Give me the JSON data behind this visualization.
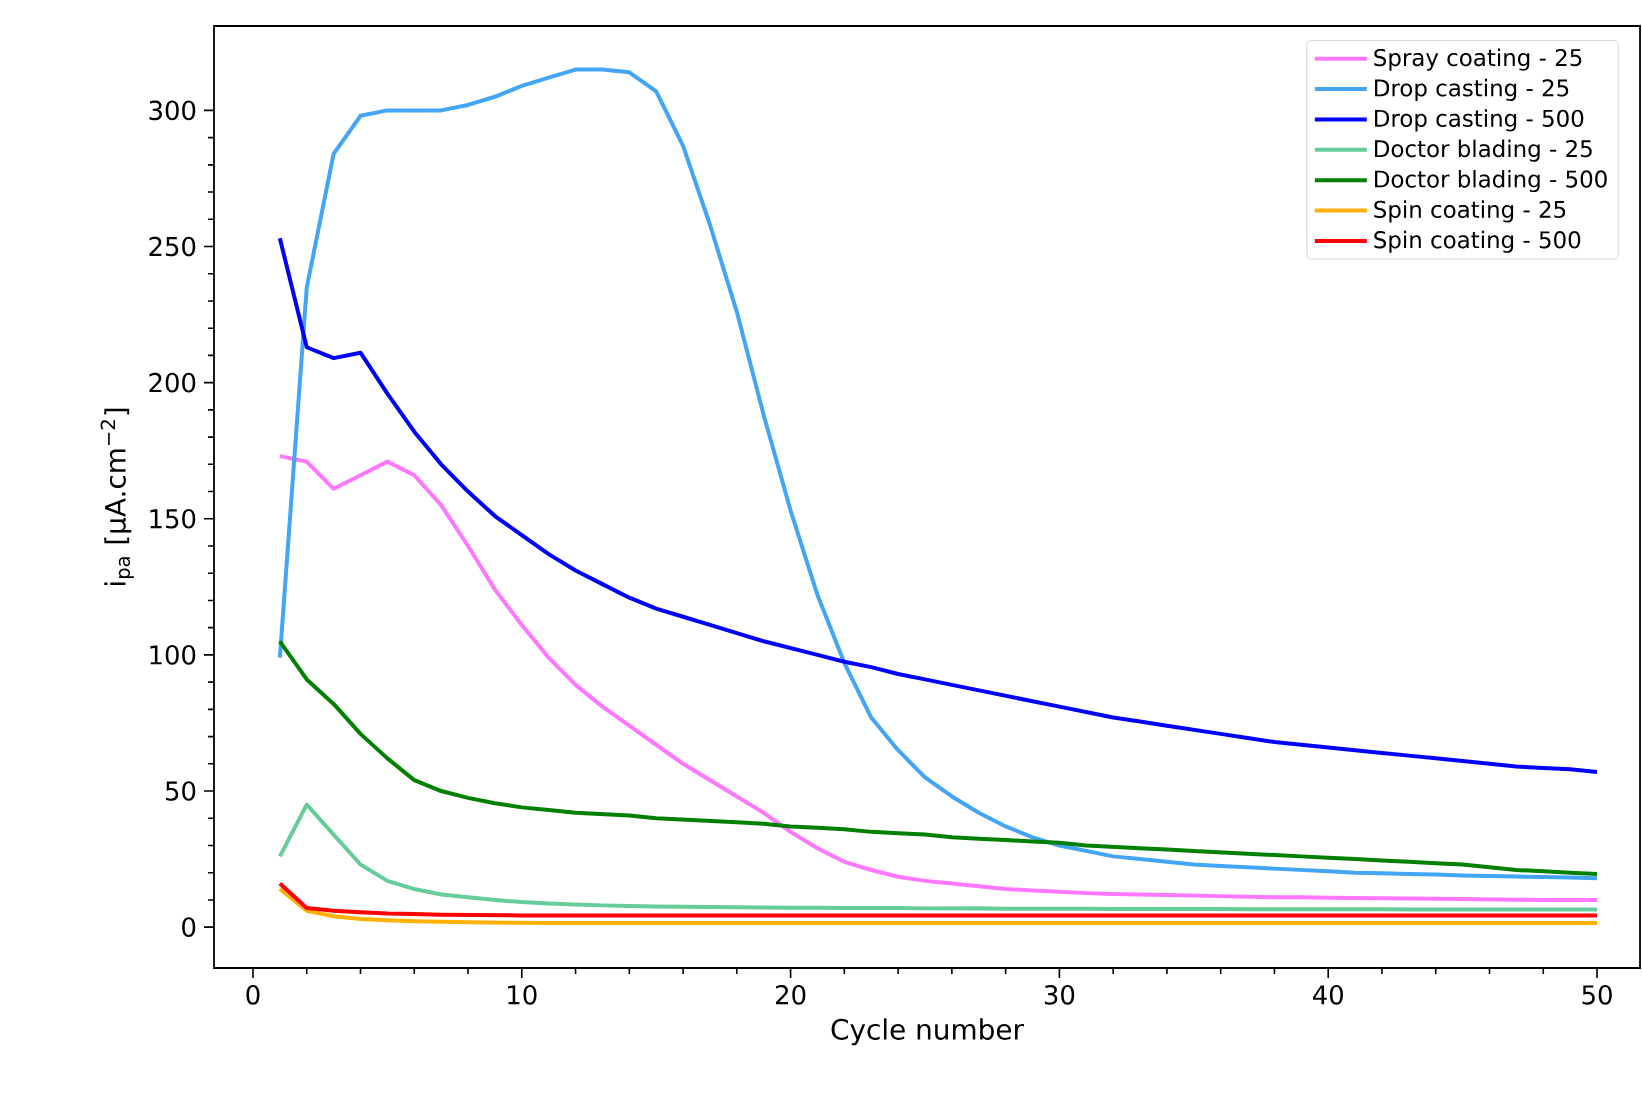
{
  "chart_data": {
    "type": "line",
    "xlabel": "Cycle number",
    "ylabel": "i$_{pa}$ [µA.cm$^{−2}$]",
    "x": [
      1,
      2,
      3,
      4,
      5,
      6,
      7,
      8,
      9,
      10,
      11,
      12,
      13,
      14,
      15,
      16,
      17,
      18,
      19,
      20,
      21,
      22,
      23,
      24,
      25,
      26,
      27,
      28,
      29,
      30,
      31,
      32,
      33,
      34,
      35,
      36,
      37,
      38,
      39,
      40,
      41,
      42,
      43,
      44,
      45,
      46,
      47,
      48,
      49,
      50
    ],
    "series": [
      {
        "name": "Spray coating - 25",
        "color": "#ff77ff",
        "values": [
          173,
          171,
          161,
          166,
          171,
          166,
          155,
          140,
          124,
          111,
          99,
          89,
          81,
          74,
          67,
          60,
          54,
          48,
          42,
          35,
          29,
          24,
          21,
          18.5,
          17,
          16,
          15,
          14,
          13.5,
          13,
          12.5,
          12.2,
          12,
          11.8,
          11.6,
          11.4,
          11.2,
          11,
          11,
          10.8,
          10.7,
          10.6,
          10.5,
          10.4,
          10.3,
          10.2,
          10.1,
          10,
          10,
          10
        ]
      },
      {
        "name": "Drop casting - 25",
        "color": "#42a5f5",
        "values": [
          99,
          235,
          284,
          298,
          300,
          300,
          300,
          302,
          305,
          309,
          312,
          315,
          315,
          314,
          307,
          287,
          258,
          226,
          188,
          153,
          122,
          97,
          77,
          65,
          55,
          48,
          42,
          37,
          33,
          30,
          28,
          26,
          25,
          24,
          23,
          22.5,
          22,
          21.5,
          21,
          20.5,
          20,
          19.8,
          19.5,
          19.3,
          19,
          18.8,
          18.6,
          18.4,
          18.2,
          18
        ]
      },
      {
        "name": "Drop casting - 500",
        "color": "#0000ff",
        "values": [
          253,
          213,
          209,
          211,
          196,
          182,
          170,
          160,
          151,
          144,
          137,
          131,
          126,
          121,
          117,
          114,
          111,
          108,
          105,
          102.5,
          100,
          97.5,
          95.5,
          93,
          91,
          89,
          87,
          85,
          83,
          81,
          79,
          77,
          75.5,
          74,
          72.5,
          71,
          69.5,
          68,
          67,
          66,
          65,
          64,
          63,
          62,
          61,
          60,
          59,
          58.5,
          58,
          57
        ]
      },
      {
        "name": "Doctor blading - 25",
        "color": "#66cc99",
        "values": [
          26,
          45,
          34,
          23,
          17,
          14,
          12,
          11,
          10,
          9.2,
          8.7,
          8.3,
          8,
          7.8,
          7.6,
          7.5,
          7.4,
          7.3,
          7.2,
          7.1,
          7.1,
          7,
          7,
          7,
          6.9,
          6.9,
          6.9,
          6.8,
          6.8,
          6.8,
          6.8,
          6.7,
          6.7,
          6.7,
          6.7,
          6.7,
          6.6,
          6.6,
          6.6,
          6.6,
          6.6,
          6.6,
          6.5,
          6.5,
          6.5,
          6.5,
          6.5,
          6.5,
          6.5,
          6.5
        ]
      },
      {
        "name": "Doctor blading - 500",
        "color": "#008000",
        "values": [
          105,
          91,
          82,
          71,
          62,
          54,
          50,
          47.5,
          45.5,
          44,
          43,
          42,
          41.5,
          41,
          40,
          39.5,
          39,
          38.5,
          38,
          37,
          36.5,
          36,
          35,
          34.5,
          34,
          33,
          32.5,
          32,
          31.5,
          31,
          30,
          29.5,
          29,
          28.5,
          28,
          27.5,
          27,
          26.5,
          26,
          25.5,
          25,
          24.5,
          24,
          23.5,
          23,
          22,
          21,
          20.5,
          20,
          19.5
        ]
      },
      {
        "name": "Spin coating - 25",
        "color": "#ffb000",
        "values": [
          14,
          6,
          4,
          3,
          2.5,
          2.2,
          2,
          1.8,
          1.7,
          1.6,
          1.5,
          1.5,
          1.5,
          1.5,
          1.5,
          1.5,
          1.5,
          1.5,
          1.5,
          1.5,
          1.5,
          1.5,
          1.5,
          1.5,
          1.5,
          1.5,
          1.5,
          1.5,
          1.5,
          1.5,
          1.5,
          1.5,
          1.5,
          1.5,
          1.5,
          1.5,
          1.5,
          1.5,
          1.5,
          1.5,
          1.5,
          1.5,
          1.5,
          1.5,
          1.5,
          1.5,
          1.5,
          1.5,
          1.5,
          1.5
        ]
      },
      {
        "name": "Spin coating - 500",
        "color": "#ff0000",
        "values": [
          16,
          7,
          6,
          5.5,
          5,
          4.8,
          4.6,
          4.5,
          4.4,
          4.3,
          4.3,
          4.3,
          4.3,
          4.3,
          4.3,
          4.3,
          4.3,
          4.3,
          4.3,
          4.3,
          4.3,
          4.3,
          4.3,
          4.3,
          4.3,
          4.3,
          4.3,
          4.3,
          4.3,
          4.3,
          4.3,
          4.3,
          4.3,
          4.3,
          4.3,
          4.3,
          4.3,
          4.3,
          4.3,
          4.3,
          4.3,
          4.3,
          4.3,
          4.3,
          4.3,
          4.3,
          4.3,
          4.3,
          4.3,
          4.3
        ]
      }
    ],
    "xlim": [
      -1.45,
      51.6
    ],
    "ylim": [
      -15,
      331
    ],
    "xticks": [
      0,
      10,
      20,
      30,
      40,
      50
    ],
    "yticks": [
      0,
      50,
      100,
      150,
      200,
      250,
      300
    ],
    "legend": "top right",
    "grid": false
  }
}
